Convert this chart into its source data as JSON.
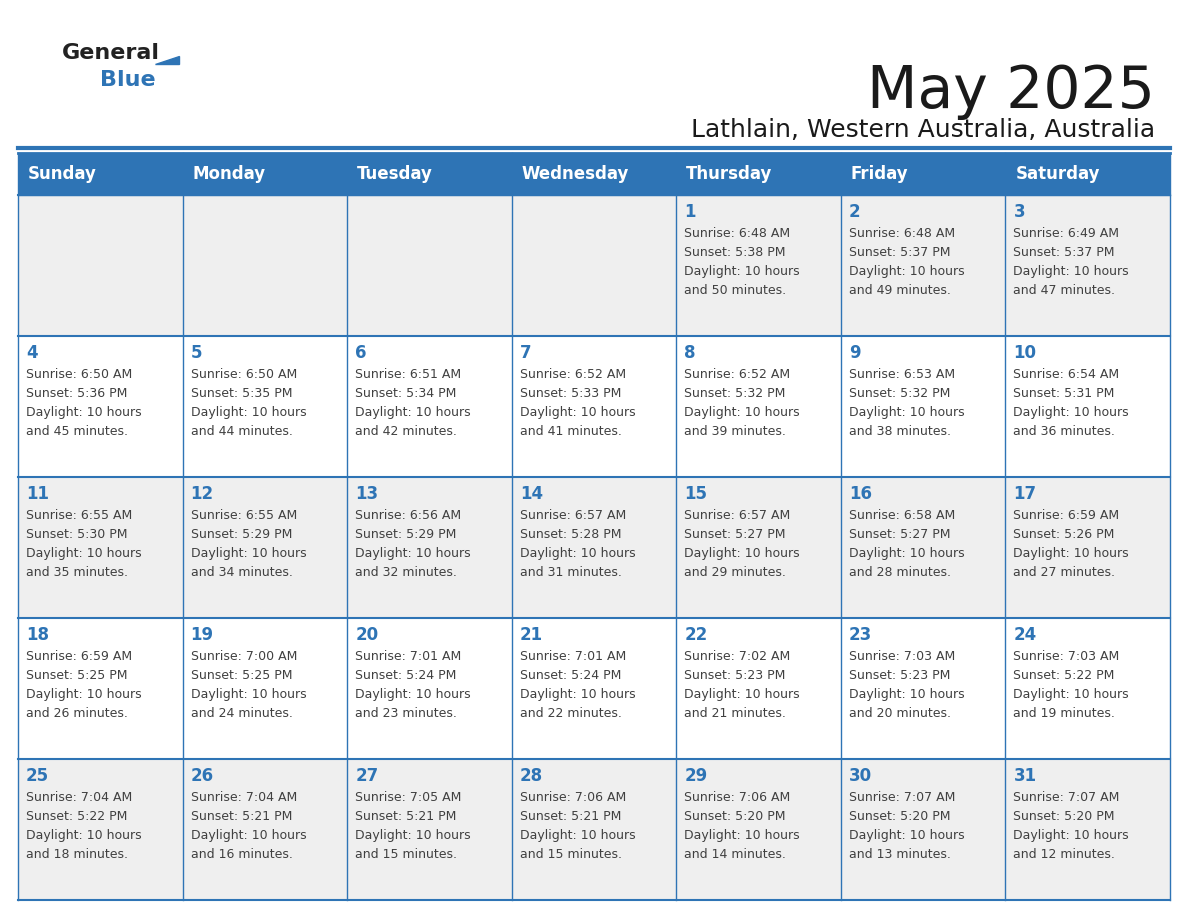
{
  "title": "May 2025",
  "subtitle": "Lathlain, Western Australia, Australia",
  "header_bg": "#2E74B5",
  "header_text_color": "#FFFFFF",
  "cell_bg_even": "#EFEFEF",
  "cell_bg_odd": "#FFFFFF",
  "day_number_color": "#2E74B5",
  "info_text_color": "#404040",
  "border_color": "#2E74B5",
  "grid_line_color": "#AAAAAA",
  "days_of_week": [
    "Sunday",
    "Monday",
    "Tuesday",
    "Wednesday",
    "Thursday",
    "Friday",
    "Saturday"
  ],
  "calendar_data": [
    [
      {
        "day": 0,
        "sunrise": "",
        "sunset": "",
        "daylight": ""
      },
      {
        "day": 0,
        "sunrise": "",
        "sunset": "",
        "daylight": ""
      },
      {
        "day": 0,
        "sunrise": "",
        "sunset": "",
        "daylight": ""
      },
      {
        "day": 0,
        "sunrise": "",
        "sunset": "",
        "daylight": ""
      },
      {
        "day": 1,
        "sunrise": "6:48 AM",
        "sunset": "5:38 PM",
        "daylight": "10 hours and 50 minutes."
      },
      {
        "day": 2,
        "sunrise": "6:48 AM",
        "sunset": "5:37 PM",
        "daylight": "10 hours and 49 minutes."
      },
      {
        "day": 3,
        "sunrise": "6:49 AM",
        "sunset": "5:37 PM",
        "daylight": "10 hours and 47 minutes."
      }
    ],
    [
      {
        "day": 4,
        "sunrise": "6:50 AM",
        "sunset": "5:36 PM",
        "daylight": "10 hours and 45 minutes."
      },
      {
        "day": 5,
        "sunrise": "6:50 AM",
        "sunset": "5:35 PM",
        "daylight": "10 hours and 44 minutes."
      },
      {
        "day": 6,
        "sunrise": "6:51 AM",
        "sunset": "5:34 PM",
        "daylight": "10 hours and 42 minutes."
      },
      {
        "day": 7,
        "sunrise": "6:52 AM",
        "sunset": "5:33 PM",
        "daylight": "10 hours and 41 minutes."
      },
      {
        "day": 8,
        "sunrise": "6:52 AM",
        "sunset": "5:32 PM",
        "daylight": "10 hours and 39 minutes."
      },
      {
        "day": 9,
        "sunrise": "6:53 AM",
        "sunset": "5:32 PM",
        "daylight": "10 hours and 38 minutes."
      },
      {
        "day": 10,
        "sunrise": "6:54 AM",
        "sunset": "5:31 PM",
        "daylight": "10 hours and 36 minutes."
      }
    ],
    [
      {
        "day": 11,
        "sunrise": "6:55 AM",
        "sunset": "5:30 PM",
        "daylight": "10 hours and 35 minutes."
      },
      {
        "day": 12,
        "sunrise": "6:55 AM",
        "sunset": "5:29 PM",
        "daylight": "10 hours and 34 minutes."
      },
      {
        "day": 13,
        "sunrise": "6:56 AM",
        "sunset": "5:29 PM",
        "daylight": "10 hours and 32 minutes."
      },
      {
        "day": 14,
        "sunrise": "6:57 AM",
        "sunset": "5:28 PM",
        "daylight": "10 hours and 31 minutes."
      },
      {
        "day": 15,
        "sunrise": "6:57 AM",
        "sunset": "5:27 PM",
        "daylight": "10 hours and 29 minutes."
      },
      {
        "day": 16,
        "sunrise": "6:58 AM",
        "sunset": "5:27 PM",
        "daylight": "10 hours and 28 minutes."
      },
      {
        "day": 17,
        "sunrise": "6:59 AM",
        "sunset": "5:26 PM",
        "daylight": "10 hours and 27 minutes."
      }
    ],
    [
      {
        "day": 18,
        "sunrise": "6:59 AM",
        "sunset": "5:25 PM",
        "daylight": "10 hours and 26 minutes."
      },
      {
        "day": 19,
        "sunrise": "7:00 AM",
        "sunset": "5:25 PM",
        "daylight": "10 hours and 24 minutes."
      },
      {
        "day": 20,
        "sunrise": "7:01 AM",
        "sunset": "5:24 PM",
        "daylight": "10 hours and 23 minutes."
      },
      {
        "day": 21,
        "sunrise": "7:01 AM",
        "sunset": "5:24 PM",
        "daylight": "10 hours and 22 minutes."
      },
      {
        "day": 22,
        "sunrise": "7:02 AM",
        "sunset": "5:23 PM",
        "daylight": "10 hours and 21 minutes."
      },
      {
        "day": 23,
        "sunrise": "7:03 AM",
        "sunset": "5:23 PM",
        "daylight": "10 hours and 20 minutes."
      },
      {
        "day": 24,
        "sunrise": "7:03 AM",
        "sunset": "5:22 PM",
        "daylight": "10 hours and 19 minutes."
      }
    ],
    [
      {
        "day": 25,
        "sunrise": "7:04 AM",
        "sunset": "5:22 PM",
        "daylight": "10 hours and 18 minutes."
      },
      {
        "day": 26,
        "sunrise": "7:04 AM",
        "sunset": "5:21 PM",
        "daylight": "10 hours and 16 minutes."
      },
      {
        "day": 27,
        "sunrise": "7:05 AM",
        "sunset": "5:21 PM",
        "daylight": "10 hours and 15 minutes."
      },
      {
        "day": 28,
        "sunrise": "7:06 AM",
        "sunset": "5:21 PM",
        "daylight": "10 hours and 15 minutes."
      },
      {
        "day": 29,
        "sunrise": "7:06 AM",
        "sunset": "5:20 PM",
        "daylight": "10 hours and 14 minutes."
      },
      {
        "day": 30,
        "sunrise": "7:07 AM",
        "sunset": "5:20 PM",
        "daylight": "10 hours and 13 minutes."
      },
      {
        "day": 31,
        "sunrise": "7:07 AM",
        "sunset": "5:20 PM",
        "daylight": "10 hours and 12 minutes."
      }
    ]
  ]
}
